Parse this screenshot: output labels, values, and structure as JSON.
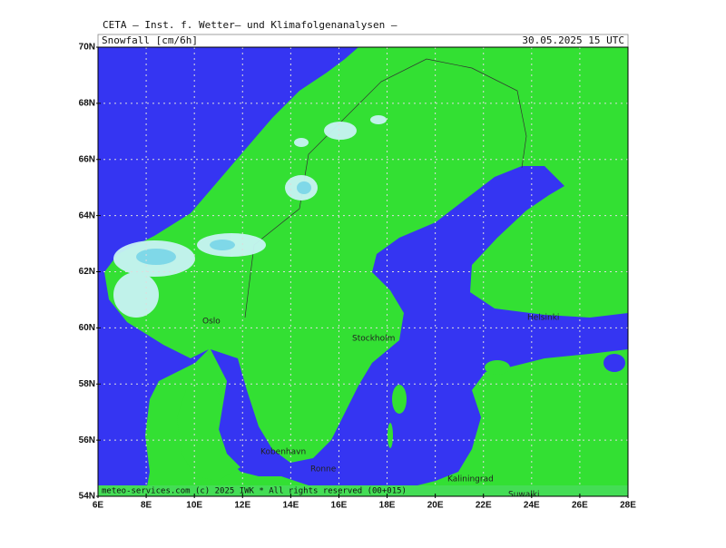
{
  "header": {
    "institute": "CETA — Inst. f. Wetter— und Klimafolgenanalysen —",
    "parameter": "Snowfall [cm/6h]",
    "valid_time": "30.05.2025 15 UTC"
  },
  "map": {
    "lat_ticks": [
      {
        "value": 54,
        "label": "54N"
      },
      {
        "value": 56,
        "label": "56N"
      },
      {
        "value": 58,
        "label": "58N"
      },
      {
        "value": 60,
        "label": "60N"
      },
      {
        "value": 62,
        "label": "62N"
      },
      {
        "value": 64,
        "label": "64N"
      },
      {
        "value": 66,
        "label": "66N"
      },
      {
        "value": 68,
        "label": "68N"
      },
      {
        "value": 70,
        "label": "70N"
      }
    ],
    "lon_ticks": [
      {
        "value": 6,
        "label": "6E"
      },
      {
        "value": 8,
        "label": "8E"
      },
      {
        "value": 10,
        "label": "10E"
      },
      {
        "value": 12,
        "label": "12E"
      },
      {
        "value": 14,
        "label": "14E"
      },
      {
        "value": 16,
        "label": "16E"
      },
      {
        "value": 18,
        "label": "18E"
      },
      {
        "value": 20,
        "label": "20E"
      },
      {
        "value": 22,
        "label": "22E"
      },
      {
        "value": 24,
        "label": "24E"
      },
      {
        "value": 26,
        "label": "26E"
      },
      {
        "value": 28,
        "label": "28E"
      }
    ],
    "grid": true,
    "places": [
      "Oslo",
      "Stockholm",
      "Helsinki",
      "Kobenhavn",
      "Ronne",
      "Kaliningrad",
      "Suwalki"
    ]
  },
  "footer": "meteo-services.com (c) 2025 IWK * All rights reserved (00+015)"
}
